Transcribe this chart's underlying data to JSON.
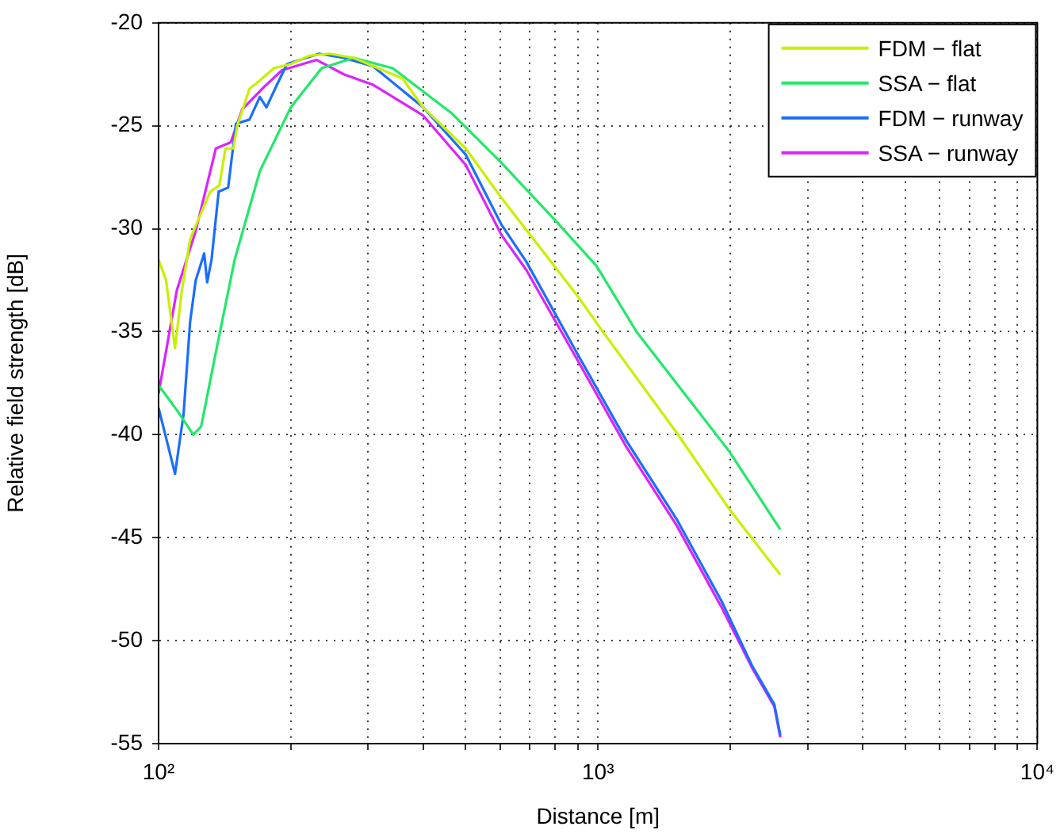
{
  "chart_data": {
    "type": "line",
    "xlabel": "Distance [m]",
    "ylabel": "Relative field strength [dB]",
    "log": "x",
    "grid": true,
    "legend": "top right",
    "marker": "none",
    "line_style": "solid",
    "xlim": [
      100,
      10000
    ],
    "ylim": [
      -55,
      -20
    ],
    "xticks": [
      {
        "value": 100,
        "label": "10²"
      },
      {
        "value": 200,
        "label": null
      },
      {
        "value": 300,
        "label": null
      },
      {
        "value": 400,
        "label": null
      },
      {
        "value": 500,
        "label": null
      },
      {
        "value": 600,
        "label": null
      },
      {
        "value": 700,
        "label": null
      },
      {
        "value": 800,
        "label": null
      },
      {
        "value": 900,
        "label": null
      },
      {
        "value": 1000,
        "label": "10³"
      },
      {
        "value": 2000,
        "label": null
      },
      {
        "value": 3000,
        "label": null
      },
      {
        "value": 4000,
        "label": null
      },
      {
        "value": 5000,
        "label": null
      },
      {
        "value": 6000,
        "label": null
      },
      {
        "value": 7000,
        "label": null
      },
      {
        "value": 8000,
        "label": null
      },
      {
        "value": 9000,
        "label": null
      },
      {
        "value": 10000,
        "label": "10⁴"
      }
    ],
    "yticks": [
      -55,
      -50,
      -45,
      -40,
      -35,
      -30,
      -25,
      -20
    ],
    "series": [
      {
        "name": "FDM − flat",
        "color": "#c8f000",
        "x": [
          100,
          104,
          109,
          113,
          118,
          131,
          137.5,
          142,
          148,
          151,
          161,
          170,
          183,
          200,
          220,
          245,
          278,
          300,
          359,
          400,
          500,
          603,
          894,
          1018,
          1510,
          1988,
          2600
        ],
        "values": [
          -31.5,
          -32.5,
          -35.8,
          -33,
          -30.5,
          -28.2,
          -27.9,
          -26.1,
          -26.1,
          -25,
          -23.2,
          -22.8,
          -22.2,
          -22,
          -21.6,
          -21.5,
          -21.7,
          -22,
          -22.7,
          -24.1,
          -26.1,
          -28.5,
          -33.2,
          -34.9,
          -39.9,
          -43.6,
          -46.8
        ]
      },
      {
        "name": "SSA − flat",
        "color": "#22e86a",
        "x": [
          100,
          110,
          120,
          125,
          135,
          149,
          170,
          200,
          235,
          278,
          341,
          465,
          603,
          800,
          992,
          1224,
          1988,
          2600
        ],
        "values": [
          -37.6,
          -38.8,
          -40,
          -39.6,
          -36,
          -31.5,
          -27.2,
          -24.1,
          -22.2,
          -21.7,
          -22.2,
          -24.4,
          -26.8,
          -29.6,
          -31.8,
          -35,
          -40.8,
          -44.6
        ]
      },
      {
        "name": "FDM − runway",
        "color": "#1a6eff",
        "x": [
          100,
          105,
          109,
          114,
          118,
          121.5,
          127,
          129,
          132,
          137,
          144,
          150,
          161,
          170,
          176,
          186,
          196,
          232,
          264,
          307,
          400,
          500,
          603,
          687,
          894,
          1161,
          1510,
          1913,
          2240,
          2520,
          2600
        ],
        "values": [
          -38.7,
          -40.5,
          -41.9,
          -39,
          -34.5,
          -32.5,
          -31.2,
          -32.6,
          -31.5,
          -28.2,
          -28,
          -24.9,
          -24.7,
          -23.6,
          -24.1,
          -23,
          -22,
          -21.5,
          -21.7,
          -22.1,
          -24.1,
          -26.4,
          -29.8,
          -31.6,
          -36,
          -40.3,
          -44.1,
          -48.1,
          -51.2,
          -53.1,
          -54.6
        ]
      },
      {
        "name": "SSA − runway",
        "color": "#dd22ff",
        "x": [
          100,
          110,
          121.5,
          135,
          146,
          155,
          174,
          191,
          229,
          264,
          307,
          400,
          500,
          603,
          687,
          894,
          1161,
          1510,
          1913,
          2240,
          2520,
          2600
        ],
        "values": [
          -38,
          -33,
          -30.1,
          -26.1,
          -25.8,
          -24.2,
          -23.1,
          -22.3,
          -21.8,
          -22.5,
          -23,
          -24.5,
          -26.9,
          -30.3,
          -32,
          -36.3,
          -40.6,
          -44.4,
          -48.4,
          -51.3,
          -53.2,
          -54.7
        ]
      }
    ]
  }
}
